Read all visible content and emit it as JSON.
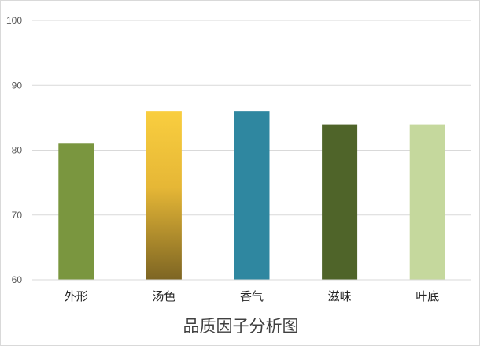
{
  "chart_data": {
    "type": "bar",
    "title": "品质因子分析图",
    "categories": [
      "外形",
      "汤色",
      "香气",
      "滋味",
      "叶底"
    ],
    "values": [
      81,
      86,
      86,
      84,
      84
    ],
    "ylim": [
      60,
      100
    ],
    "yticks": [
      60,
      70,
      80,
      90,
      100
    ],
    "grid": true,
    "bar_colors": [
      "#7a963f",
      "gradient:#f9ce3f-#7d6523",
      "#2f87a0",
      "#4f6429",
      "#c5d89d"
    ]
  }
}
